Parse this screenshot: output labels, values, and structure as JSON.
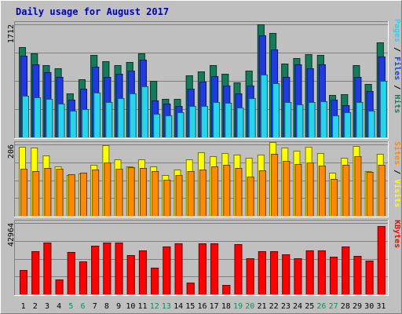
{
  "chart_data": {
    "type": "bar",
    "title": "Daily usage for August 2017",
    "colors": {
      "title": "#0000aa",
      "background": "#c0c0c0",
      "panel": "#c0c0c0",
      "pages": "#26d4ee",
      "files": "#1e3cde",
      "hits": "#167b5b",
      "visits": "#ffff00",
      "sites": "#ff8a00",
      "kbytes": "#ff0000",
      "weekend_label": "#178a5c",
      "weekday_label": "#000000"
    },
    "categories": [
      "1",
      "2",
      "3",
      "4",
      "5",
      "6",
      "7",
      "8",
      "9",
      "10",
      "11",
      "12",
      "13",
      "14",
      "15",
      "16",
      "17",
      "18",
      "19",
      "20",
      "21",
      "22",
      "23",
      "24",
      "25",
      "26",
      "27",
      "28",
      "29",
      "30",
      "31"
    ],
    "weekend_days": [
      "5",
      "6",
      "12",
      "13",
      "19",
      "20",
      "26",
      "27"
    ],
    "panels": [
      {
        "id": "hits-files-pages",
        "ymax": 1712,
        "ymax_label": "1712",
        "legend": [
          {
            "text": "Pages",
            "color": "#26d4ee"
          },
          {
            "text": " / ",
            "color": "#000000"
          },
          {
            "text": "Files",
            "color": "#1e3cde"
          },
          {
            "text": " / ",
            "color": "#000000"
          },
          {
            "text": "Hits",
            "color": "#167b5b"
          }
        ],
        "series": [
          {
            "name": "Hits",
            "color": "#167b5b",
            "values": [
              1370,
              1270,
              1090,
              1050,
              670,
              880,
              1250,
              1150,
              1090,
              1140,
              1270,
              860,
              580,
              580,
              940,
              1000,
              1090,
              960,
              830,
              1010,
              1712,
              1580,
              1120,
              1200,
              1260,
              1250,
              640,
              650,
              1090,
              810,
              1440
            ]
          },
          {
            "name": "Files",
            "color": "#1e3cde",
            "values": [
              1240,
              1110,
              990,
              910,
              570,
              740,
              1070,
              920,
              960,
              1010,
              1180,
              560,
              510,
              470,
              740,
              840,
              930,
              790,
              660,
              780,
              1540,
              1330,
              910,
              1100,
              1050,
              1110,
              570,
              490,
              920,
              700,
              1220
            ]
          },
          {
            "name": "Pages",
            "color": "#26d4ee",
            "values": [
              630,
              610,
              580,
              510,
              410,
              430,
              680,
              540,
              600,
              660,
              770,
              360,
              330,
              380,
              480,
              470,
              530,
              520,
              450,
              590,
              950,
              820,
              540,
              500,
              540,
              550,
              330,
              380,
              540,
              400,
              860
            ]
          }
        ]
      },
      {
        "id": "visits-sites",
        "ymax": 206,
        "ymax_label": "206",
        "legend": [
          {
            "text": "Sites",
            "color": "#ff8a00"
          },
          {
            "text": " / ",
            "color": "#000000"
          },
          {
            "text": "Visits",
            "color": "#ffff00"
          }
        ],
        "series": [
          {
            "name": "Visits",
            "color": "#ffff00",
            "values": [
              200,
              197,
              175,
              142,
              118,
              122,
              147,
              204,
              164,
              143,
              164,
              142,
              118,
              134,
              164,
              183,
              173,
              181,
              177,
              168,
              176,
              212,
              196,
              187,
              200,
              180,
              125,
              168,
              201,
              129,
              178
            ]
          },
          {
            "name": "Sites",
            "color": "#ff8a00",
            "values": [
              136,
              129,
              138,
              136,
              121,
              124,
              133,
              153,
              136,
              141,
              138,
              129,
              104,
              117,
              130,
              133,
              143,
              147,
              137,
              113,
              132,
              178,
              159,
              149,
              155,
              144,
              107,
              148,
              171,
              127,
              148
            ]
          }
        ]
      },
      {
        "id": "kbytes",
        "ymax": 42964,
        "ymax_label": "42964",
        "legend": [
          {
            "text": "KBytes",
            "color": "#ff0000"
          }
        ],
        "series": [
          {
            "name": "KBytes",
            "color": "#ff0000",
            "values": [
              14500,
              25800,
              31300,
              8900,
              25400,
              19700,
              29200,
              31300,
              31000,
              23600,
              26500,
              16100,
              29000,
              30800,
              7000,
              30600,
              30800,
              5500,
              30000,
              21800,
              25900,
              25900,
              23900,
              21700,
              26600,
              26600,
              22800,
              28900,
              23200,
              20500,
              41200
            ]
          }
        ]
      }
    ]
  }
}
